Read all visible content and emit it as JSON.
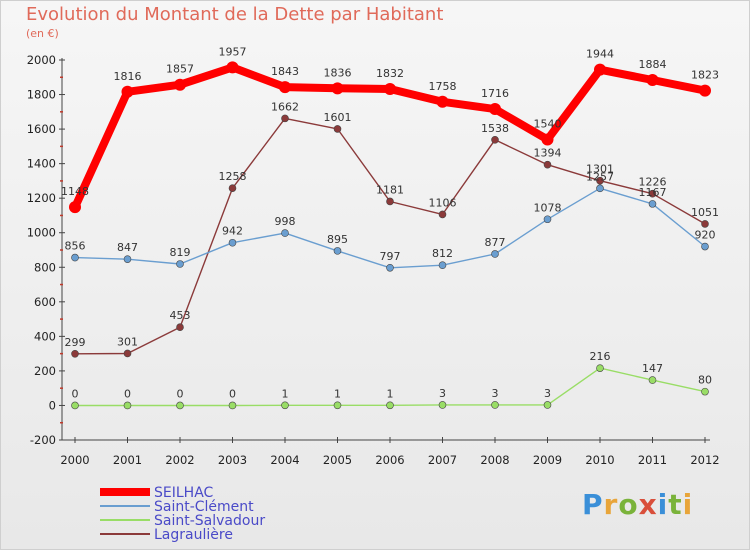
{
  "header": {
    "title": "Evolution du Montant de la Dette par Habitant",
    "subtitle": "(en €)"
  },
  "logo": {
    "text": "Proxiti",
    "letters": [
      "P",
      "r",
      "o",
      "x",
      "i",
      "t",
      "i"
    ],
    "colors": [
      "#3a8fd8",
      "#e8a53a",
      "#7ab33a",
      "#d94f3b",
      "#3a8fd8",
      "#7ab33a",
      "#e8a53a"
    ]
  },
  "chart_data": {
    "type": "line",
    "title": "Evolution du Montant de la Dette par Habitant",
    "ylabel": "(en €)",
    "xlabel": "",
    "x": [
      "2000",
      "2001",
      "2002",
      "2003",
      "2004",
      "2005",
      "2006",
      "2007",
      "2008",
      "2009",
      "2010",
      "2011",
      "2012"
    ],
    "ylim": [
      -200,
      2000
    ],
    "yticks": [
      -200,
      0,
      200,
      400,
      600,
      800,
      1000,
      1200,
      1400,
      1600,
      1800,
      2000
    ],
    "grid": false,
    "legend_position": "bottom-left",
    "series": [
      {
        "name": "SEILHAC",
        "color": "#ff0000",
        "values": [
          1148,
          1816,
          1857,
          1957,
          1843,
          1836,
          1832,
          1758,
          1716,
          1540,
          1944,
          1884,
          1823
        ]
      },
      {
        "name": "Saint-Clément",
        "color": "#6a9ed0",
        "values": [
          856,
          847,
          819,
          942,
          998,
          895,
          797,
          812,
          877,
          1078,
          1257,
          1167,
          920
        ]
      },
      {
        "name": "Saint-Salvadour",
        "color": "#99dd66",
        "values": [
          0,
          0,
          0,
          0,
          1,
          1,
          1,
          3,
          3,
          3,
          216,
          147,
          80
        ]
      },
      {
        "name": "Lagraulière",
        "color": "#8b3a3a",
        "values": [
          299,
          301,
          453,
          1258,
          1662,
          1601,
          1181,
          1106,
          1538,
          1394,
          1301,
          1226,
          1051
        ]
      }
    ]
  }
}
